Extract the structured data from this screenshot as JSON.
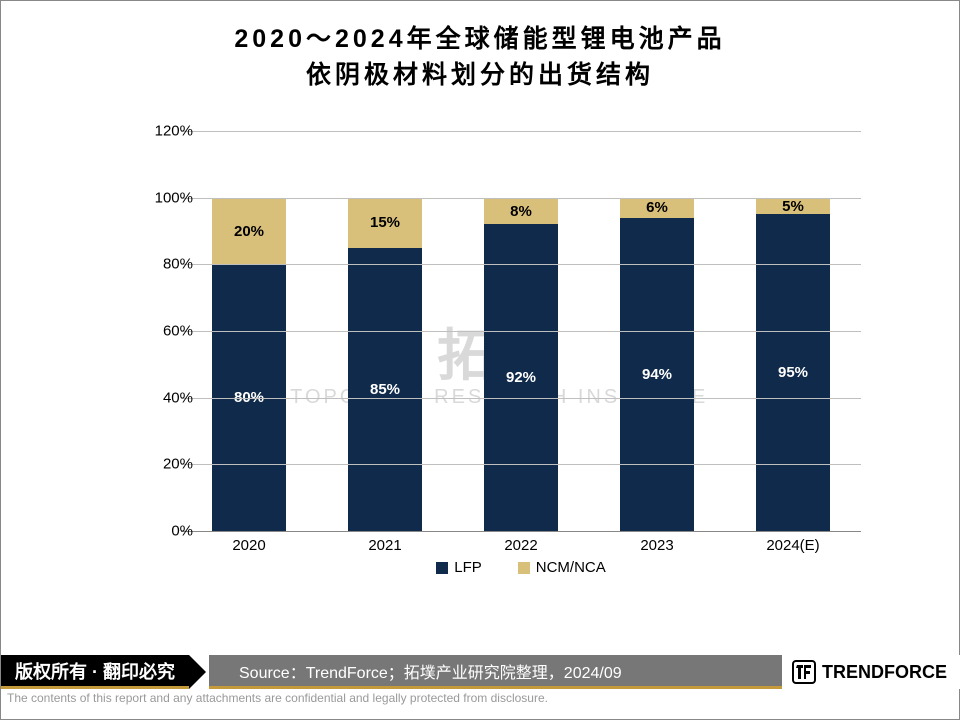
{
  "title": {
    "line1": "2020～2024年全球储能型锂电池产品",
    "line2": "依阴极材料划分的出货结构",
    "fontsize": 25,
    "color": "#000000"
  },
  "chart": {
    "type": "stacked-bar-percent",
    "categories": [
      "2020",
      "2021",
      "2022",
      "2023",
      "2024(E)"
    ],
    "series": [
      {
        "name": "LFP",
        "color": "#0f2a4a",
        "text_color": "#ffffff",
        "values": [
          80,
          85,
          92,
          94,
          95
        ]
      },
      {
        "name": "NCM/NCA",
        "color": "#d9c07a",
        "text_color": "#000000",
        "values": [
          20,
          15,
          8,
          6,
          5
        ]
      }
    ],
    "ylim": [
      0,
      120
    ],
    "ytick_step": 20,
    "y_suffix": "%",
    "grid_color": "#bfbfbf",
    "axis_color": "#888888",
    "background_color": "#ffffff",
    "bar_width_pct": 74,
    "label_fontsize": 15,
    "legend_fontsize": 15,
    "value_label_suffix": "%"
  },
  "watermark": {
    "line1": "拓墣",
    "line2": "TOPOLOGY RESEARCH INSTITUTE",
    "color": "#d9d9d9"
  },
  "footer": {
    "copyright": "版权所有 · 翻印必究",
    "source": "Source：TrendForce；拓墣产业研究院整理，2024/09",
    "brand_name": "TRENDFORCE",
    "disclaimer": "The contents of this report and any attachments are confidential and legally protected from disclosure.",
    "accent_color": "#c59a3a",
    "bar_bg": "#777777"
  }
}
